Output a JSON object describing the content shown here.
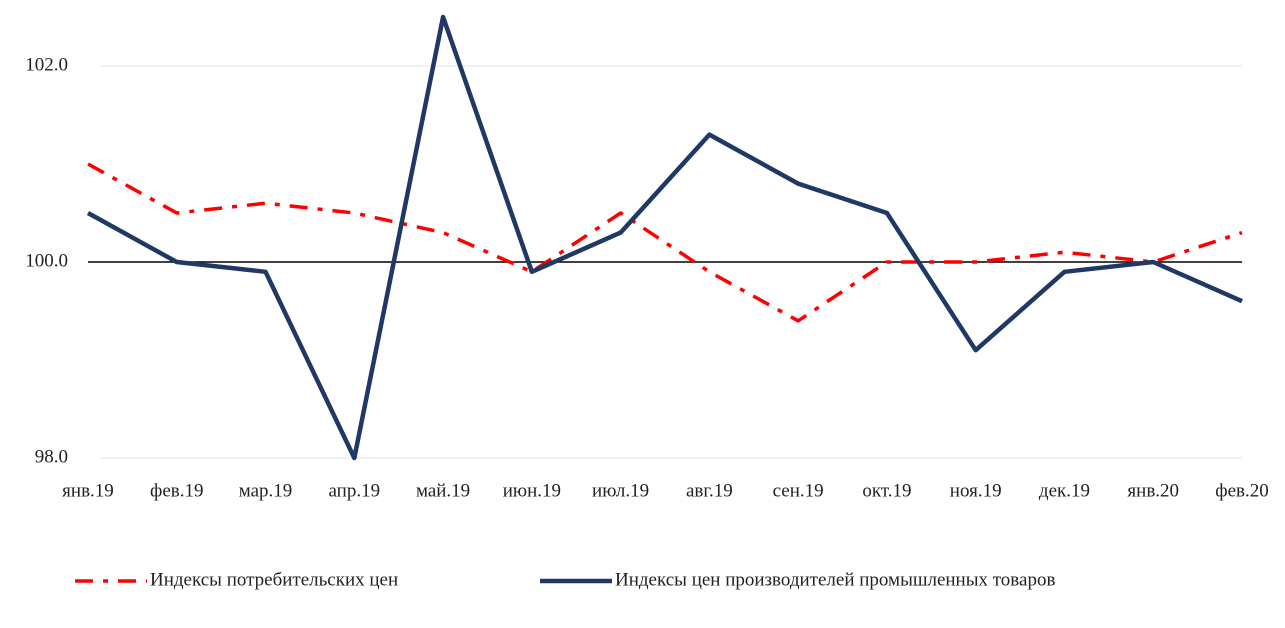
{
  "chart_data": {
    "type": "line",
    "categories": [
      "янв.19",
      "фев.19",
      "мар.19",
      "апр.19",
      "май.19",
      "июн.19",
      "июл.19",
      "авг.19",
      "сен.19",
      "окт.19",
      "ноя.19",
      "дек.19",
      "янв.20",
      "фев.20"
    ],
    "series": [
      {
        "name": "Индексы потребительских цен",
        "color": "#ff0000",
        "dash": "dash-dot",
        "values": [
          101.0,
          100.5,
          100.6,
          100.5,
          100.3,
          99.9,
          100.5,
          99.9,
          99.4,
          100.0,
          100.0,
          100.1,
          100.0,
          100.3
        ]
      },
      {
        "name": "Индексы цен производителей промышленных товаров",
        "color": "#1f3864",
        "dash": "solid",
        "values": [
          100.5,
          100.0,
          99.9,
          98.0,
          102.5,
          99.9,
          100.3,
          101.3,
          100.8,
          100.5,
          99.1,
          99.9,
          100.0,
          99.6
        ]
      }
    ],
    "ylim": [
      98,
      102.5
    ],
    "yticks": [
      {
        "value": 98,
        "label": "98.0"
      },
      {
        "value": 100,
        "label": "100.0"
      },
      {
        "value": 102,
        "label": "102.0"
      }
    ],
    "x_axis_at": 100,
    "grid": true,
    "legend": "bottom"
  }
}
